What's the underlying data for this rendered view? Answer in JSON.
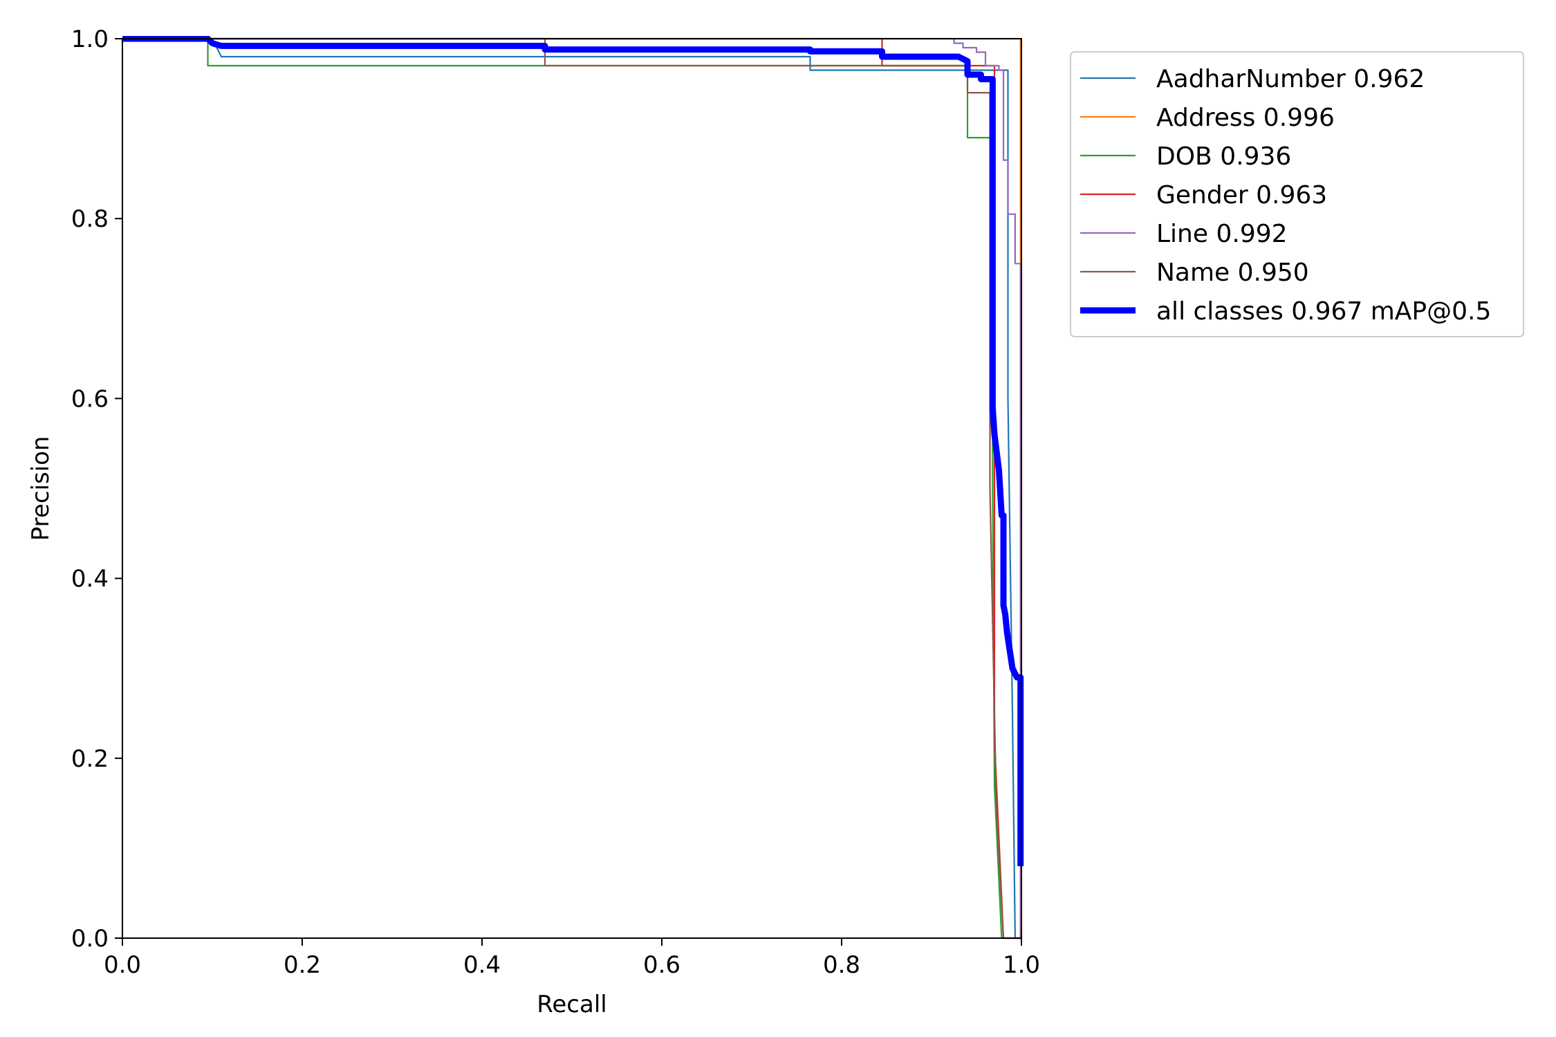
{
  "chart_data": {
    "type": "line",
    "title": "",
    "xlabel": "Recall",
    "ylabel": "Precision",
    "xlim": [
      0,
      1
    ],
    "ylim": [
      0,
      1
    ],
    "x_ticks": [
      "0.0",
      "0.2",
      "0.4",
      "0.6",
      "0.8",
      "1.0"
    ],
    "y_ticks": [
      "0.0",
      "0.2",
      "0.4",
      "0.6",
      "0.8",
      "1.0"
    ],
    "grid": false,
    "legend_position": "outside-top-right",
    "series": [
      {
        "name": "AadharNumber 0.962",
        "color": "#1f77b4",
        "points": [
          [
            0,
            1
          ],
          [
            0.1,
            1
          ],
          [
            0.11,
            0.98
          ],
          [
            0.765,
            0.98
          ],
          [
            0.765,
            0.965
          ],
          [
            0.985,
            0.965
          ],
          [
            0.985,
            0.6
          ],
          [
            0.99,
            0.25
          ],
          [
            0.993,
            0
          ],
          [
            1,
            0
          ]
        ]
      },
      {
        "name": "Address 0.996",
        "color": "#ff7f0e",
        "points": [
          [
            0,
            1
          ],
          [
            0.999,
            1
          ],
          [
            0.999,
            0.75
          ],
          [
            1,
            0.75
          ],
          [
            1,
            0
          ]
        ]
      },
      {
        "name": "DOB 0.936",
        "color": "#2ca02c",
        "points": [
          [
            0,
            1
          ],
          [
            0.095,
            1
          ],
          [
            0.095,
            0.97
          ],
          [
            0.94,
            0.97
          ],
          [
            0.94,
            0.89
          ],
          [
            0.968,
            0.89
          ],
          [
            0.968,
            0.5
          ],
          [
            0.97,
            0.17
          ],
          [
            0.978,
            0
          ],
          [
            1,
            0
          ]
        ]
      },
      {
        "name": "Gender 0.963",
        "color": "#d62728",
        "points": [
          [
            0,
            1
          ],
          [
            0.845,
            1
          ],
          [
            0.845,
            0.97
          ],
          [
            0.97,
            0.97
          ],
          [
            0.97,
            0.22
          ],
          [
            0.98,
            0
          ],
          [
            1,
            0
          ]
        ]
      },
      {
        "name": "Line 0.992",
        "color": "#9467bd",
        "points": [
          [
            0,
            1
          ],
          [
            0.925,
            1
          ],
          [
            0.925,
            0.995
          ],
          [
            0.935,
            0.995
          ],
          [
            0.935,
            0.99
          ],
          [
            0.95,
            0.99
          ],
          [
            0.95,
            0.985
          ],
          [
            0.96,
            0.985
          ],
          [
            0.96,
            0.97
          ],
          [
            0.975,
            0.97
          ],
          [
            0.975,
            0.965
          ],
          [
            0.98,
            0.965
          ],
          [
            0.98,
            0.865
          ],
          [
            0.985,
            0.865
          ],
          [
            0.985,
            0.805
          ],
          [
            0.993,
            0.805
          ],
          [
            0.993,
            0.75
          ],
          [
            0.999,
            0.75
          ],
          [
            0.999,
            0
          ]
        ]
      },
      {
        "name": "Name 0.950",
        "color": "#8c564b",
        "points": [
          [
            0,
            1
          ],
          [
            0.47,
            1
          ],
          [
            0.47,
            0.97
          ],
          [
            0.94,
            0.97
          ],
          [
            0.94,
            0.94
          ],
          [
            0.965,
            0.94
          ],
          [
            0.965,
            0.5
          ],
          [
            0.972,
            0.15
          ],
          [
            0.98,
            0
          ],
          [
            1,
            0
          ]
        ]
      },
      {
        "name": "all classes 0.967 mAP@0.5",
        "color": "#0000ff",
        "bold": true,
        "points": [
          [
            0,
            1
          ],
          [
            0.095,
            1
          ],
          [
            0.1,
            0.995
          ],
          [
            0.11,
            0.992
          ],
          [
            0.47,
            0.992
          ],
          [
            0.47,
            0.988
          ],
          [
            0.765,
            0.988
          ],
          [
            0.765,
            0.986
          ],
          [
            0.845,
            0.986
          ],
          [
            0.845,
            0.98
          ],
          [
            0.93,
            0.98
          ],
          [
            0.94,
            0.975
          ],
          [
            0.94,
            0.96
          ],
          [
            0.955,
            0.96
          ],
          [
            0.955,
            0.955
          ],
          [
            0.968,
            0.955
          ],
          [
            0.968,
            0.59
          ],
          [
            0.97,
            0.56
          ],
          [
            0.975,
            0.52
          ],
          [
            0.978,
            0.47
          ],
          [
            0.98,
            0.47
          ],
          [
            0.98,
            0.37
          ],
          [
            0.982,
            0.36
          ],
          [
            0.984,
            0.34
          ],
          [
            0.99,
            0.3
          ],
          [
            0.995,
            0.29
          ],
          [
            0.999,
            0.29
          ],
          [
            0.999,
            0.08
          ]
        ]
      }
    ]
  }
}
